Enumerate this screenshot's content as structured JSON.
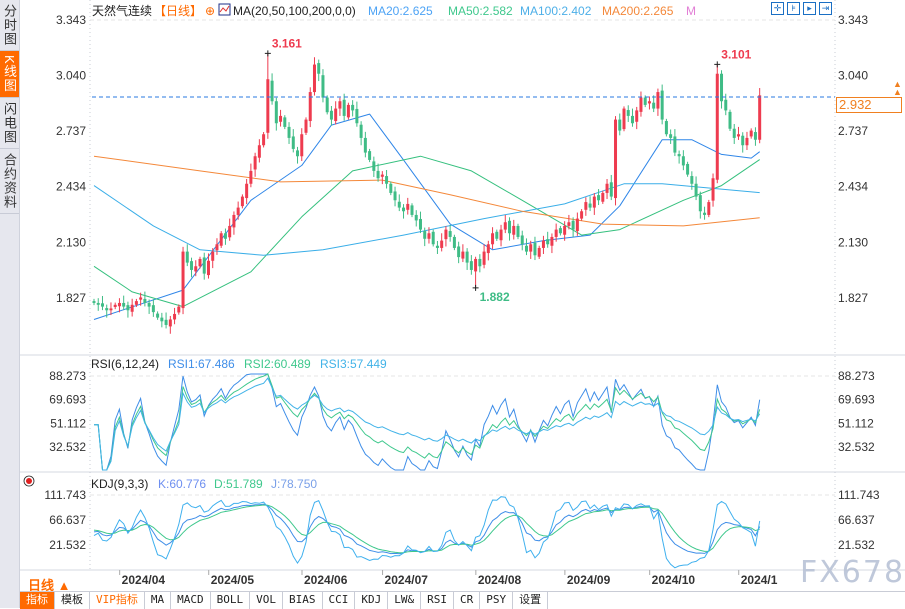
{
  "sidebar": {
    "tabs": [
      {
        "label": "分时图",
        "active": false
      },
      {
        "label": "K线图",
        "active": true
      },
      {
        "label": "闪电图",
        "active": false
      },
      {
        "label": "合约资料",
        "active": false
      }
    ]
  },
  "header": {
    "instrument": "天然气连续",
    "period_tag": "【日线】",
    "ma_label": "MA(20,50,100,200,0,0)",
    "ma20": "MA20:2.625",
    "ma50": "MA50:2.582",
    "ma100": "MA100:2.402",
    "ma200": "MA200:2.265",
    "ma_more": "M",
    "tool_icons": [
      "crosshair-icon",
      "zoom-in-icon",
      "move-right-icon",
      "goto-end-icon"
    ]
  },
  "colors": {
    "up": "#ee3b4f",
    "down": "#3fbc86",
    "ma20": "#2f86e8",
    "ma50": "#35c07e",
    "ma100": "#3aaee8",
    "ma200": "#f4883a",
    "accent": "#ff6a00",
    "last_price_line": "#2a7ae2"
  },
  "chart_data": [
    {
      "type": "candlestick",
      "y_ticks": [
        "3.343",
        "3.040",
        "2.737",
        "2.434",
        "2.130",
        "1.827"
      ],
      "ylim": [
        1.827,
        3.343
      ],
      "x_ticks": [
        "2024/04",
        "2024/05",
        "2024/06",
        "2024/07",
        "2024/08",
        "2024/09",
        "2024/10",
        "2024/1"
      ],
      "x_tick_bars": [
        7,
        28,
        50,
        69,
        91,
        112,
        132,
        153
      ],
      "close": [
        1.8,
        1.79,
        1.78,
        1.76,
        1.77,
        1.79,
        1.8,
        1.78,
        1.76,
        1.79,
        1.81,
        1.83,
        1.8,
        1.78,
        1.75,
        1.72,
        1.7,
        1.68,
        1.71,
        1.74,
        1.78,
        2.08,
        2.02,
        1.98,
        2.0,
        2.04,
        1.96,
        2.03,
        2.08,
        2.12,
        2.18,
        2.15,
        2.22,
        2.28,
        2.32,
        2.38,
        2.45,
        2.52,
        2.6,
        2.66,
        2.72,
        3.02,
        2.9,
        2.78,
        2.82,
        2.76,
        2.7,
        2.64,
        2.6,
        2.72,
        2.8,
        2.95,
        3.1,
        3.05,
        2.92,
        2.84,
        2.8,
        2.86,
        2.9,
        2.82,
        2.88,
        2.85,
        2.78,
        2.7,
        2.62,
        2.58,
        2.52,
        2.48,
        2.5,
        2.45,
        2.4,
        2.36,
        2.32,
        2.3,
        2.34,
        2.28,
        2.25,
        2.2,
        2.15,
        2.18,
        2.12,
        2.1,
        2.14,
        2.2,
        2.16,
        2.1,
        2.05,
        2.08,
        2.02,
        1.98,
        2.04,
        2.0,
        2.08,
        2.12,
        2.18,
        2.15,
        2.2,
        2.24,
        2.18,
        2.22,
        2.16,
        2.12,
        2.08,
        2.12,
        2.06,
        2.1,
        2.14,
        2.12,
        2.16,
        2.2,
        2.18,
        2.22,
        2.24,
        2.2,
        2.26,
        2.3,
        2.35,
        2.32,
        2.38,
        2.36,
        2.4,
        2.45,
        2.38,
        2.8,
        2.74,
        2.86,
        2.82,
        2.78,
        2.85,
        2.92,
        2.88,
        2.9,
        2.86,
        2.95,
        2.8,
        2.72,
        2.7,
        2.62,
        2.6,
        2.55,
        2.5,
        2.45,
        2.38,
        2.3,
        2.28,
        2.35,
        2.48,
        3.05,
        2.9,
        2.85,
        2.75,
        2.7,
        2.72,
        2.66,
        2.7,
        2.74,
        2.69,
        2.932
      ],
      "annotations": [
        {
          "label": "3.161",
          "bar": 41,
          "value": 3.161,
          "kind": "high"
        },
        {
          "label": "3.101",
          "bar": 147,
          "value": 3.101,
          "kind": "high"
        },
        {
          "label": "1.882",
          "bar": 90,
          "value": 1.882,
          "kind": "low"
        }
      ],
      "last_price": "2.932",
      "moving_averages": {
        "MA20": [
          [
            0,
            1.71
          ],
          [
            21,
            1.87
          ],
          [
            37,
            2.36
          ],
          [
            49,
            2.55
          ],
          [
            56,
            2.77
          ],
          [
            65,
            2.83
          ],
          [
            73,
            2.58
          ],
          [
            84,
            2.23
          ],
          [
            94,
            2.09
          ],
          [
            106,
            2.14
          ],
          [
            117,
            2.17
          ],
          [
            124,
            2.33
          ],
          [
            134,
            2.69
          ],
          [
            141,
            2.69
          ],
          [
            148,
            2.61
          ],
          [
            155,
            2.59
          ],
          [
            157,
            2.625
          ]
        ],
        "MA50": [
          [
            0,
            2.0
          ],
          [
            9,
            1.86
          ],
          [
            21,
            1.78
          ],
          [
            37,
            1.97
          ],
          [
            49,
            2.27
          ],
          [
            61,
            2.52
          ],
          [
            77,
            2.6
          ],
          [
            89,
            2.52
          ],
          [
            101,
            2.36
          ],
          [
            115,
            2.17
          ],
          [
            124,
            2.2
          ],
          [
            139,
            2.36
          ],
          [
            148,
            2.44
          ],
          [
            157,
            2.582
          ]
        ],
        "MA100": [
          [
            0,
            2.44
          ],
          [
            14,
            2.22
          ],
          [
            25,
            2.09
          ],
          [
            40,
            2.06
          ],
          [
            54,
            2.09
          ],
          [
            73,
            2.17
          ],
          [
            92,
            2.26
          ],
          [
            111,
            2.34
          ],
          [
            125,
            2.45
          ],
          [
            134,
            2.45
          ],
          [
            157,
            2.402
          ]
        ],
        "MA200": [
          [
            0,
            2.6
          ],
          [
            25,
            2.52
          ],
          [
            44,
            2.46
          ],
          [
            68,
            2.47
          ],
          [
            84,
            2.39
          ],
          [
            101,
            2.3
          ],
          [
            120,
            2.23
          ],
          [
            139,
            2.22
          ],
          [
            157,
            2.265
          ]
        ]
      }
    },
    {
      "type": "line",
      "title": "RSI(6,12,24)",
      "legend": [
        "RSI1:67.486",
        "RSI2:60.489",
        "RSI3:57.449"
      ],
      "y_ticks": [
        "88.273",
        "69.693",
        "51.112",
        "32.532"
      ],
      "ylim": [
        32.532,
        88.273
      ]
    },
    {
      "type": "line",
      "title": "KDJ(9,3,3)",
      "legend": [
        "K:60.776",
        "D:51.789",
        "J:78.750"
      ],
      "y_ticks": [
        "111.743",
        "66.637",
        "21.532"
      ],
      "ylim": [
        21.532,
        111.743
      ]
    }
  ],
  "footer": {
    "period": "日线 ▲",
    "tabs": [
      "指标",
      "模板",
      "VIP指标",
      "MA",
      "MACD",
      "BOLL",
      "VOL",
      "BIAS",
      "CCI",
      "KDJ",
      "LW&",
      "RSI",
      "CR",
      "PSY",
      "设置"
    ],
    "watermark": "FX678"
  }
}
